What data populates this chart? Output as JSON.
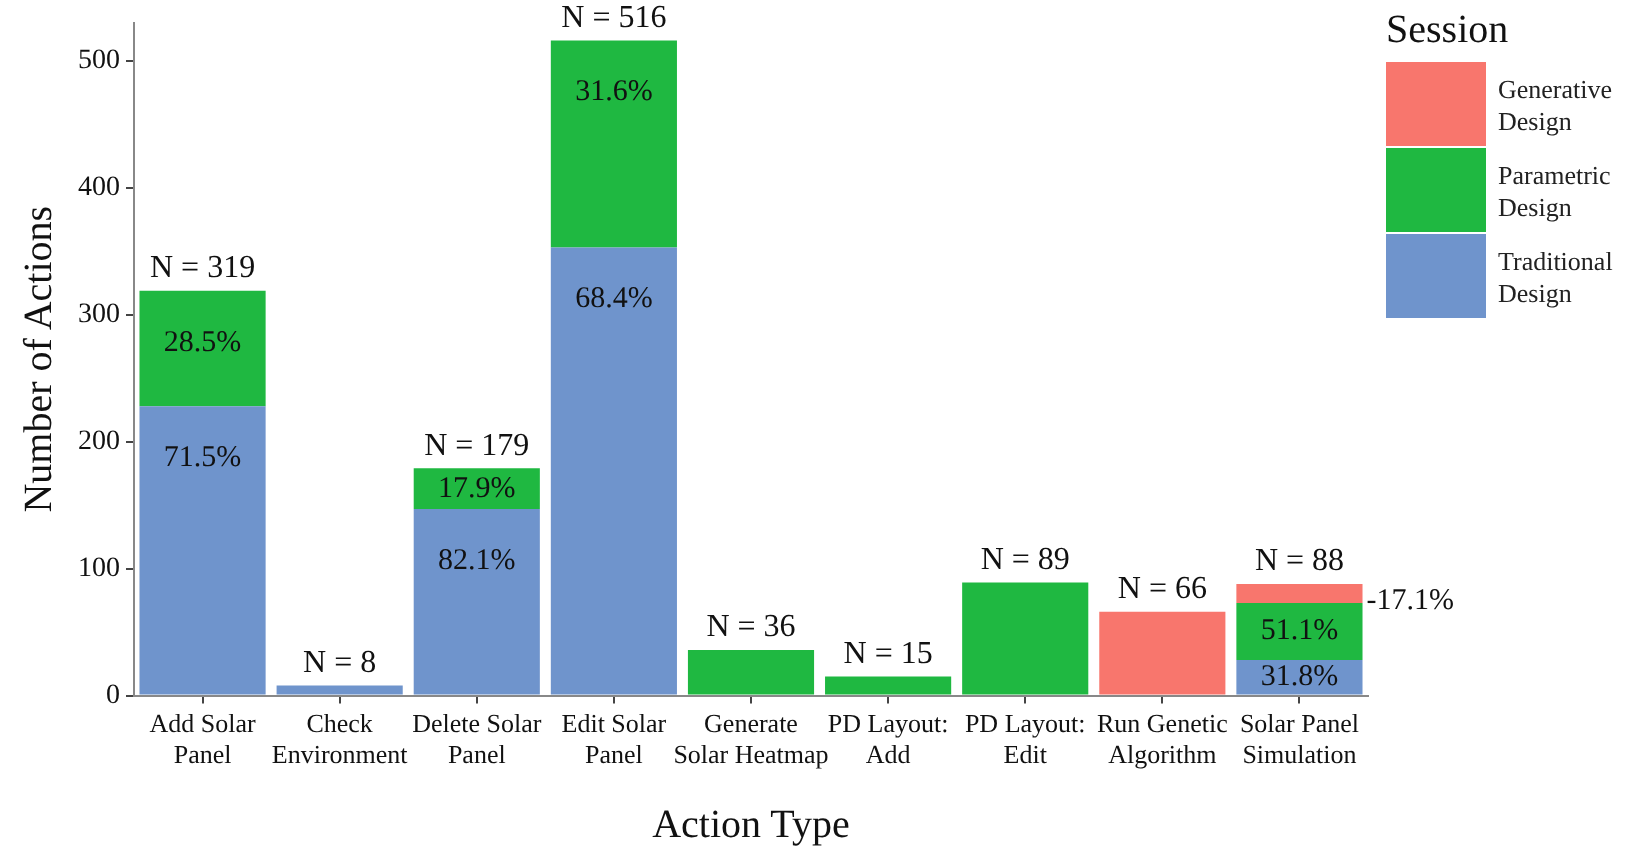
{
  "chart_data": {
    "type": "bar",
    "stacked": true,
    "xlabel": "Action Type",
    "ylabel": "Number of Actions",
    "legend_title": "Session",
    "legend": "right",
    "grid": false,
    "categories": [
      "Add Solar Panel",
      "Check Environment",
      "Delete Solar Panel",
      "Edit Solar Panel",
      "Generate Solar Heatmap",
      "PD Layout: Add",
      "PD Layout: Edit",
      "Run Genetic Algorithm",
      "Solar Panel Simulation"
    ],
    "ylim": [
      0,
      530
    ],
    "yticks": [
      0,
      100,
      200,
      300,
      400,
      500
    ],
    "series": [
      {
        "name": "Traditional Design",
        "color": "#6f94cc",
        "values": [
          228,
          8,
          147,
          353,
          null,
          null,
          null,
          null,
          28
        ]
      },
      {
        "name": "Parametric Design",
        "color": "#1fb841",
        "values": [
          91,
          null,
          32,
          163,
          36,
          15,
          89,
          null,
          45
        ]
      },
      {
        "name": "Generative Design",
        "color": "#f8766d",
        "values": [
          null,
          null,
          null,
          null,
          null,
          null,
          null,
          66,
          15
        ]
      }
    ],
    "annotations": [
      {
        "text": "71.5%",
        "x": "Add Solar Panel",
        "y": 228
      },
      {
        "text": "28.5%",
        "x": "Add Solar Panel",
        "y": 319
      },
      {
        "text": "82.1%",
        "x": "Delete Solar Panel",
        "y": 147
      },
      {
        "text": "17.9%",
        "x": "Delete Solar Panel",
        "y": 179
      },
      {
        "text": "68.4%",
        "x": "Edit Solar Panel",
        "y": 353
      },
      {
        "text": "31.6%",
        "x": "Edit Solar Panel",
        "y": 516
      },
      {
        "text": "31.8%",
        "x": "Solar Panel Simulation",
        "y": 28
      },
      {
        "text": "51.1%",
        "x": "Solar Panel Simulation",
        "y": 73
      },
      {
        "text": "-17.1%",
        "x": "Solar Panel Simulation",
        "y": 88
      }
    ],
    "totals": [
      "N = 319",
      "N = 8",
      "N = 179",
      "N = 516",
      "N = 36",
      "N = 15",
      "N = 89",
      "N = 66",
      "N = 88"
    ]
  }
}
